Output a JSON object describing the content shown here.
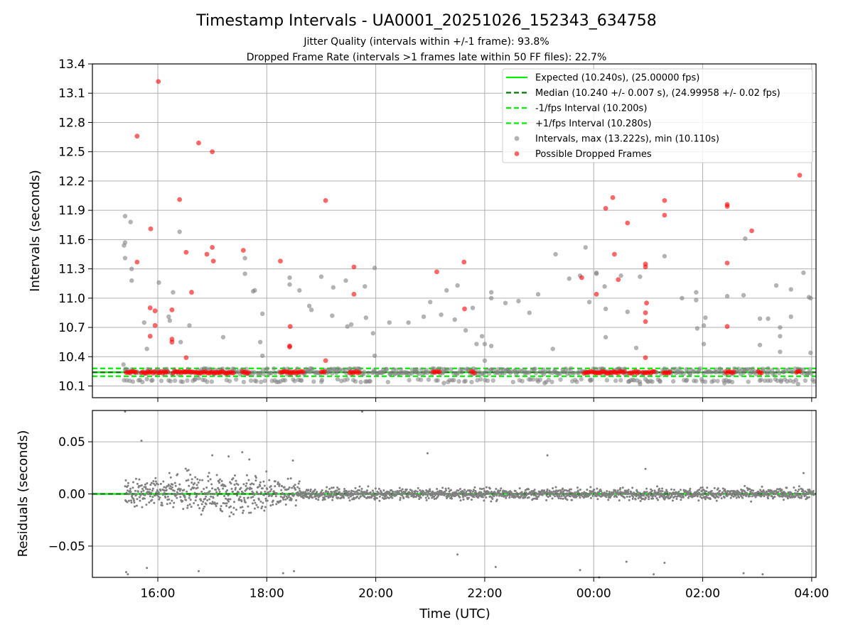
{
  "chart_data": [
    {
      "type": "scatter",
      "title": "Timestamp Intervals - UA0001_20251026_152343_634758",
      "subtitle_1": "Jitter Quality (intervals within +/-1 frame): 93.8%",
      "subtitle_2": "Dropped Frame Rate (intervals >1 frames late within 50 FF files): 22.7%",
      "xlabel": "",
      "ylabel": "Intervals (seconds)",
      "ylim": [
        9.98,
        13.4
      ],
      "xlim": [
        -1.2,
        12.08
      ],
      "x_units": "hours since 16:00 UTC",
      "yticks": [
        "10.1",
        "10.4",
        "10.7",
        "11.0",
        "11.3",
        "11.6",
        "11.9",
        "12.2",
        "12.5",
        "12.8",
        "13.1",
        "13.4"
      ],
      "ytick_values": [
        10.1,
        10.4,
        10.7,
        11.0,
        11.3,
        11.6,
        11.9,
        12.2,
        12.5,
        12.8,
        13.1,
        13.4
      ],
      "grid": "y",
      "legend_position": "top-right",
      "legend": [
        {
          "label": "Expected (10.240s), (25.00000 fps)",
          "style": "solid",
          "color": "#00ee00"
        },
        {
          "label": "Median (10.240 +/- 0.007 s), (24.99958 +/- 0.02 fps)",
          "style": "dashed",
          "color": "#007700"
        },
        {
          "label": "-1/fps Interval (10.200s)",
          "style": "dashed",
          "color": "#00ee00"
        },
        {
          "label": "+1/fps Interval (10.280s)",
          "style": "dashed",
          "color": "#00ee00"
        },
        {
          "label": "Intervals, max (13.222s), min (10.110s)",
          "style": "dot",
          "color": "#808080"
        },
        {
          "label": "Possible Dropped Frames",
          "style": "dot",
          "color": "#ff0000"
        }
      ],
      "hlines": {
        "expected": 10.24,
        "median": 10.24,
        "lower": 10.2,
        "upper": 10.28
      },
      "series": [
        {
          "name": "Possible Dropped Frames",
          "color": "#ff0000",
          "points": [
            [
              0.01,
              13.22
            ],
            [
              -0.38,
              12.66
            ],
            [
              0.4,
              12.01
            ],
            [
              0.75,
              12.59
            ],
            [
              1.0,
              12.5
            ],
            [
              -0.13,
              11.71
            ],
            [
              -0.38,
              11.37
            ],
            [
              0.52,
              11.47
            ],
            [
              0.62,
              11.06
            ],
            [
              1.0,
              11.52
            ],
            [
              0.9,
              11.45
            ],
            [
              1.02,
              11.38
            ],
            [
              1.57,
              11.49
            ],
            [
              -0.14,
              10.9
            ],
            [
              -0.14,
              10.61
            ],
            [
              -0.05,
              10.87
            ],
            [
              -0.05,
              10.72
            ],
            [
              0.26,
              10.88
            ],
            [
              0.26,
              10.58
            ],
            [
              0.26,
              10.55
            ],
            [
              0.52,
              10.39
            ],
            [
              2.25,
              11.38
            ],
            [
              2.43,
              10.71
            ],
            [
              2.42,
              10.51
            ],
            [
              2.42,
              10.5
            ],
            [
              3.08,
              12.0
            ],
            [
              3.08,
              10.36
            ],
            [
              3.6,
              11.32
            ],
            [
              3.6,
              11.04
            ],
            [
              5.12,
              11.27
            ],
            [
              5.62,
              11.37
            ],
            [
              5.63,
              10.89
            ],
            [
              7.78,
              11.21
            ],
            [
              8.05,
              11.04
            ],
            [
              8.22,
              11.92
            ],
            [
              8.35,
              12.03
            ],
            [
              8.38,
              11.45
            ],
            [
              8.45,
              11.19
            ],
            [
              8.62,
              11.77
            ],
            [
              8.95,
              11.35
            ],
            [
              8.95,
              11.32
            ],
            [
              8.97,
              10.95
            ],
            [
              8.95,
              10.85
            ],
            [
              8.95,
              10.76
            ],
            [
              8.95,
              10.39
            ],
            [
              9.3,
              12.0
            ],
            [
              9.3,
              11.85
            ],
            [
              10.45,
              11.96
            ],
            [
              10.45,
              11.94
            ],
            [
              10.45,
              11.36
            ],
            [
              10.45,
              10.71
            ],
            [
              10.9,
              11.69
            ],
            [
              11.78,
              12.26
            ]
          ]
        },
        {
          "name": "Intervals, max (13.222s), min (10.110s)",
          "color": "#808080",
          "points": [
            [
              -0.6,
              11.84
            ],
            [
              -0.62,
              11.54
            ],
            [
              -0.6,
              11.57
            ],
            [
              -0.6,
              11.41
            ],
            [
              -0.5,
              11.78
            ],
            [
              -0.48,
              11.3
            ],
            [
              -0.48,
              11.18
            ],
            [
              -0.25,
              10.75
            ],
            [
              -0.2,
              10.48
            ],
            [
              0.02,
              11.16
            ],
            [
              0.2,
              10.81
            ],
            [
              0.22,
              10.77
            ],
            [
              0.28,
              11.06
            ],
            [
              0.4,
              11.68
            ],
            [
              0.42,
              10.55
            ],
            [
              0.58,
              10.72
            ],
            [
              1.2,
              10.6
            ],
            [
              1.6,
              11.25
            ],
            [
              1.6,
              11.41
            ],
            [
              1.75,
              11.07
            ],
            [
              1.78,
              11.08
            ],
            [
              1.92,
              10.84
            ],
            [
              1.92,
              10.41
            ],
            [
              1.88,
              10.55
            ],
            [
              2.42,
              11.21
            ],
            [
              2.42,
              11.14
            ],
            [
              2.6,
              11.08
            ],
            [
              2.78,
              10.92
            ],
            [
              2.82,
              10.88
            ],
            [
              3.0,
              11.22
            ],
            [
              3.22,
              11.11
            ],
            [
              3.2,
              10.82
            ],
            [
              3.45,
              11.18
            ],
            [
              3.48,
              10.71
            ],
            [
              3.55,
              10.73
            ],
            [
              3.8,
              11.12
            ],
            [
              3.82,
              10.8
            ],
            [
              3.95,
              10.64
            ],
            [
              3.98,
              11.31
            ],
            [
              3.98,
              10.41
            ],
            [
              4.25,
              10.75
            ],
            [
              4.6,
              10.75
            ],
            [
              4.88,
              10.81
            ],
            [
              5.0,
              10.96
            ],
            [
              5.2,
              10.83
            ],
            [
              5.3,
              11.08
            ],
            [
              5.5,
              11.13
            ],
            [
              5.45,
              10.78
            ],
            [
              5.65,
              10.67
            ],
            [
              5.78,
              10.9
            ],
            [
              5.85,
              10.53
            ],
            [
              5.95,
              10.61
            ],
            [
              6.0,
              10.53
            ],
            [
              6.12,
              10.51
            ],
            [
              6.0,
              10.36
            ],
            [
              6.12,
              11.06
            ],
            [
              6.12,
              11.0
            ],
            [
              6.38,
              10.95
            ],
            [
              6.62,
              10.97
            ],
            [
              6.82,
              10.85
            ],
            [
              6.98,
              11.04
            ],
            [
              7.3,
              11.45
            ],
            [
              7.25,
              10.48
            ],
            [
              7.55,
              11.2
            ],
            [
              7.85,
              11.52
            ],
            [
              7.75,
              11.23
            ],
            [
              8.05,
              11.26
            ],
            [
              8.05,
              11.25
            ],
            [
              7.92,
              10.96
            ],
            [
              8.2,
              11.12
            ],
            [
              8.22,
              10.89
            ],
            [
              8.22,
              10.6
            ],
            [
              8.5,
              11.23
            ],
            [
              8.62,
              10.86
            ],
            [
              8.78,
              10.49
            ],
            [
              8.85,
              11.22
            ],
            [
              9.3,
              11.43
            ],
            [
              9.62,
              11.0
            ],
            [
              9.88,
              11.06
            ],
            [
              9.88,
              10.98
            ],
            [
              9.9,
              10.69
            ],
            [
              10.02,
              10.72
            ],
            [
              10.05,
              10.8
            ],
            [
              10.02,
              10.53
            ],
            [
              10.45,
              11.02
            ],
            [
              10.75,
              11.03
            ],
            [
              10.78,
              11.61
            ],
            [
              11.05,
              10.79
            ],
            [
              11.05,
              10.52
            ],
            [
              11.2,
              10.79
            ],
            [
              11.35,
              11.13
            ],
            [
              11.42,
              10.7
            ],
            [
              11.42,
              10.61
            ],
            [
              11.42,
              10.45
            ],
            [
              11.62,
              11.09
            ],
            [
              11.62,
              10.81
            ],
            [
              11.85,
              11.26
            ],
            [
              11.95,
              11.01
            ],
            [
              11.98,
              11.0
            ],
            [
              11.98,
              10.44
            ],
            [
              -0.63,
              10.32
            ],
            [
              -0.2,
              10.17
            ],
            [
              0.75,
              10.18
            ],
            [
              2.3,
              10.16
            ],
            [
              3.3,
              10.17
            ],
            [
              5.25,
              10.13
            ],
            [
              7.1,
              10.13
            ],
            [
              8.85,
              10.12
            ],
            [
              10.4,
              10.13
            ],
            [
              11.75,
              10.12
            ],
            [
              -0.55,
              10.26
            ],
            [
              0.85,
              10.28
            ],
            [
              2.8,
              10.28
            ],
            [
              4.75,
              10.27
            ],
            [
              6.9,
              10.27
            ],
            [
              9.7,
              10.27
            ],
            [
              11.2,
              10.28
            ]
          ]
        }
      ],
      "dense_bands": [
        {
          "series": "Intervals, max (13.222s), min (10.110s)",
          "ranges": [
            [
              -0.63,
              12.05
            ]
          ],
          "y": [
            10.13,
            10.28
          ]
        },
        {
          "series": "Possible Dropped Frames",
          "ranges": [
            [
              -0.58,
              -0.38
            ],
            [
              -0.3,
              -0.05
            ],
            [
              0.0,
              0.2
            ],
            [
              0.28,
              1.4
            ],
            [
              1.55,
              1.7
            ],
            [
              2.25,
              2.68
            ],
            [
              3.0,
              3.08
            ],
            [
              3.52,
              3.72
            ],
            [
              5.05,
              5.18
            ],
            [
              5.75,
              5.82
            ],
            [
              7.82,
              7.98
            ],
            [
              8.0,
              8.58
            ],
            [
              8.65,
              8.85
            ],
            [
              8.9,
              9.12
            ],
            [
              9.28,
              9.4
            ],
            [
              10.42,
              10.58
            ],
            [
              11.02,
              11.1
            ],
            [
              11.72,
              11.8
            ]
          ],
          "y": [
            10.24,
            10.25
          ]
        }
      ]
    },
    {
      "type": "scatter",
      "title": "",
      "xlabel": "Time (UTC)",
      "ylabel": "Residuals (seconds)",
      "ylim": [
        -0.08,
        0.08
      ],
      "xlim": [
        -1.2,
        12.08
      ],
      "yticks": [
        "0.05",
        "0.00",
        "−0.05"
      ],
      "ytick_values": [
        0.05,
        0.0,
        -0.05
      ],
      "xticks": [
        "16:00",
        "18:00",
        "20:00",
        "22:00",
        "00:00",
        "02:00",
        "04:00"
      ],
      "xtick_values": [
        0,
        2,
        4,
        6,
        8,
        10,
        12
      ],
      "grid": "both",
      "series": [
        {
          "name": "",
          "color": "#808080",
          "spread": [
            {
              "from": -0.6,
              "to": 0.2,
              "amp": 0.02
            },
            {
              "from": 0.2,
              "to": 2.0,
              "amp": 0.03
            },
            {
              "from": 2.0,
              "to": 2.6,
              "amp": 0.018
            },
            {
              "from": 2.6,
              "to": 12.05,
              "amp": 0.008
            }
          ],
          "outliers": [
            [
              -0.6,
              0.079
            ],
            [
              -0.58,
              -0.075
            ],
            [
              -0.55,
              -0.077
            ],
            [
              -0.3,
              0.051
            ],
            [
              -0.2,
              -0.071
            ],
            [
              0.35,
              0.018
            ],
            [
              0.75,
              -0.074
            ],
            [
              1.0,
              0.037
            ],
            [
              1.3,
              0.036
            ],
            [
              1.55,
              0.04
            ],
            [
              1.68,
              0.033
            ],
            [
              2.3,
              -0.076
            ],
            [
              2.48,
              0.032
            ],
            [
              2.5,
              -0.074
            ],
            [
              2.6,
              0.012
            ],
            [
              3.75,
              0.079
            ],
            [
              4.95,
              0.039
            ],
            [
              5.5,
              -0.058
            ],
            [
              6.2,
              -0.07
            ],
            [
              7.15,
              0.037
            ],
            [
              7.75,
              -0.073
            ],
            [
              8.1,
              -0.08
            ],
            [
              8.6,
              -0.065
            ],
            [
              9.1,
              -0.077
            ],
            [
              8.95,
              0.024
            ],
            [
              9.3,
              -0.066
            ],
            [
              10.75,
              -0.076
            ],
            [
              11.1,
              -0.077
            ],
            [
              11.85,
              0.02
            ]
          ]
        }
      ],
      "hlines": {
        "expected": 0.0,
        "median": 0.0
      }
    }
  ]
}
